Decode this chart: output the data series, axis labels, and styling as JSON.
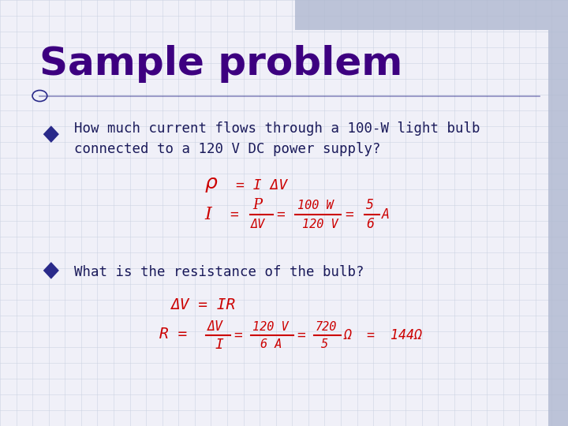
{
  "title": "Sample problem",
  "title_color": "#3d0080",
  "title_fontsize": 36,
  "bg_color": "#f0f0f8",
  "grid_color": "#c8d0e0",
  "bullet_color": "#2a2a8a",
  "text_color": "#1a1a5a",
  "handwriting_color": "#cc0000",
  "bullet1": "How much current flows through a 100-W light bulb\nconnected to a 120 V DC power supply?",
  "bullet2": "What is the resistance of the bulb?",
  "top_bar_color": "#b0b8d0",
  "right_bar_color": "#b0b8d0"
}
